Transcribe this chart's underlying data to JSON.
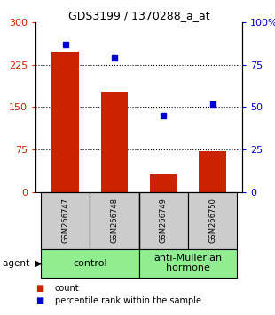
{
  "title": "GDS3199 / 1370288_a_at",
  "samples": [
    "GSM266747",
    "GSM266748",
    "GSM266749",
    "GSM266750"
  ],
  "bar_values": [
    248,
    178,
    32,
    72
  ],
  "dot_values": [
    87,
    79,
    45,
    52
  ],
  "bar_color": "#cc2200",
  "dot_color": "#0000cc",
  "ylim_left": [
    0,
    300
  ],
  "ylim_right": [
    0,
    100
  ],
  "yticks_left": [
    0,
    75,
    150,
    225,
    300
  ],
  "ytick_labels_left": [
    "0",
    "75",
    "150",
    "225",
    "300"
  ],
  "yticks_right": [
    0,
    25,
    50,
    75,
    100
  ],
  "ytick_labels_right": [
    "0",
    "25",
    "50",
    "75",
    "100%"
  ],
  "gridlines": [
    75,
    150,
    225
  ],
  "agent_label": "agent",
  "legend_count": "count",
  "legend_pct": "percentile rank within the sample",
  "left_axis_color": "#cc2200",
  "right_axis_color": "#0000cc",
  "bar_width": 0.55,
  "sample_box_color": "#cccccc",
  "group_color": "#90ee90",
  "group1_label": "control",
  "group2_label": "anti-Mullerian\nhormone",
  "title_fontsize": 9,
  "tick_fontsize": 8,
  "sample_fontsize": 6,
  "group_fontsize": 8,
  "legend_fontsize": 7
}
